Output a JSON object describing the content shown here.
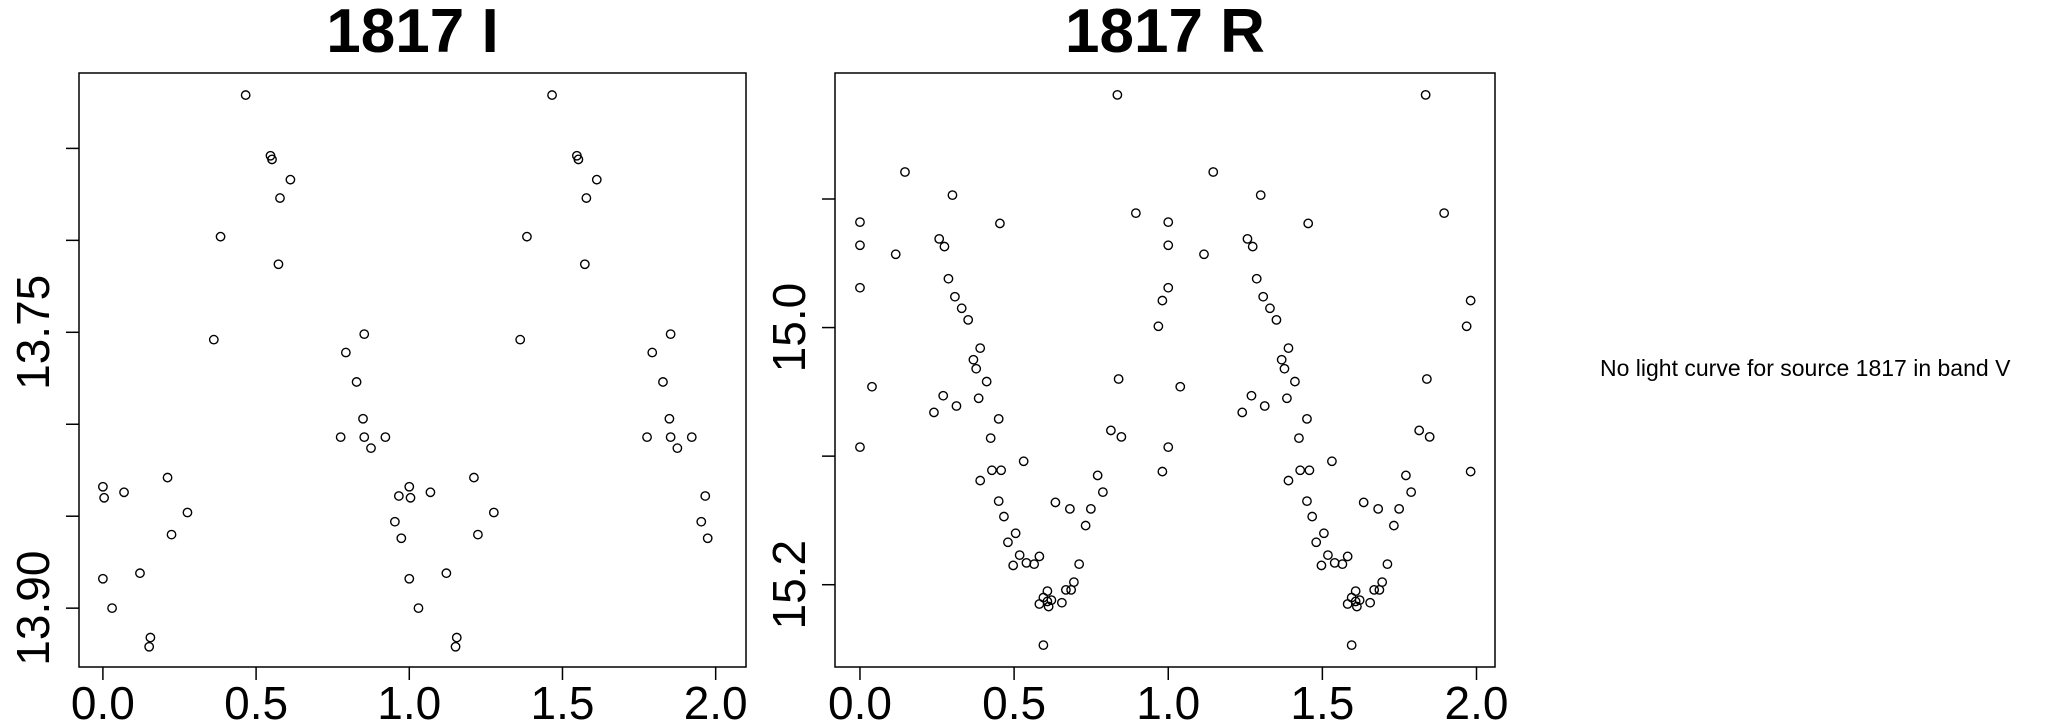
{
  "chart_data": [
    {
      "type": "scatter",
      "title": "1817 I",
      "x": [
        0.0,
        0.004,
        0.0,
        0.03,
        0.069,
        0.121,
        0.155,
        0.151,
        0.211,
        0.224,
        0.276,
        0.362,
        0.384,
        0.466,
        0.547,
        0.552,
        0.578,
        0.612,
        0.573,
        0.776,
        0.793,
        0.828,
        0.849,
        0.853,
        0.853,
        0.875,
        0.922,
        0.953,
        0.966,
        0.974,
        1.0,
        1.004,
        1.0,
        1.03,
        1.069,
        1.121,
        1.155,
        1.151,
        1.211,
        1.224,
        1.276,
        1.362,
        1.384,
        1.466,
        1.547,
        1.552,
        1.578,
        1.612,
        1.573,
        1.776,
        1.793,
        1.828,
        1.849,
        1.853,
        1.853,
        1.875,
        1.922,
        1.953,
        1.966,
        1.974
      ],
      "y": [
        13.834,
        13.84,
        13.884,
        13.9,
        13.837,
        13.881,
        13.916,
        13.921,
        13.829,
        13.86,
        13.848,
        13.754,
        13.698,
        13.621,
        13.654,
        13.656,
        13.677,
        13.667,
        13.713,
        13.807,
        13.761,
        13.777,
        13.797,
        13.807,
        13.751,
        13.813,
        13.807,
        13.853,
        13.839,
        13.862,
        13.834,
        13.84,
        13.884,
        13.9,
        13.837,
        13.881,
        13.916,
        13.921,
        13.829,
        13.86,
        13.848,
        13.754,
        13.698,
        13.621,
        13.654,
        13.656,
        13.677,
        13.667,
        13.713,
        13.807,
        13.761,
        13.777,
        13.797,
        13.807,
        13.751,
        13.813,
        13.807,
        13.853,
        13.839,
        13.862
      ],
      "xlim": [
        -0.078,
        2.099
      ],
      "xticks": [
        {
          "value": 0,
          "label": "0.0"
        },
        {
          "value": 0.5,
          "label": "0.5"
        },
        {
          "value": 1,
          "label": "1.0"
        },
        {
          "value": 1.5,
          "label": "1.5"
        },
        {
          "value": 2,
          "label": "2.0"
        }
      ],
      "ylim": [
        13.932,
        13.609
      ],
      "yticks": [
        13.75,
        {
          "value": 13.9,
          "label": "13.90"
        }
      ],
      "yminorticks": [
        13.65,
        13.7,
        13.8,
        13.85
      ]
    },
    {
      "type": "scatter",
      "title": "1817 R",
      "x": [
        0.0,
        0.0,
        0.0,
        0.0,
        0.039,
        0.116,
        0.146,
        0.24,
        0.257,
        0.27,
        0.274,
        0.287,
        0.3,
        0.308,
        0.313,
        0.33,
        0.351,
        0.368,
        0.377,
        0.385,
        0.39,
        0.39,
        0.411,
        0.424,
        0.428,
        0.45,
        0.454,
        0.45,
        0.458,
        0.467,
        0.48,
        0.497,
        0.505,
        0.518,
        0.531,
        0.54,
        0.565,
        0.582,
        0.582,
        0.595,
        0.608,
        0.608,
        0.612,
        0.621,
        0.634,
        0.655,
        0.668,
        0.681,
        0.685,
        0.694,
        0.711,
        0.732,
        0.749,
        0.771,
        0.788,
        0.814,
        0.839,
        0.848,
        0.835,
        0.895,
        0.968,
        0.981,
        0.981,
        0.595,
        1.0,
        1.0,
        1.0,
        1.0,
        1.039,
        1.116,
        1.146,
        1.24,
        1.257,
        1.27,
        1.274,
        1.287,
        1.3,
        1.308,
        1.313,
        1.33,
        1.351,
        1.368,
        1.377,
        1.385,
        1.39,
        1.39,
        1.411,
        1.424,
        1.428,
        1.45,
        1.454,
        1.45,
        1.458,
        1.467,
        1.48,
        1.497,
        1.505,
        1.518,
        1.531,
        1.54,
        1.565,
        1.582,
        1.582,
        1.595,
        1.608,
        1.608,
        1.612,
        1.621,
        1.634,
        1.655,
        1.668,
        1.681,
        1.685,
        1.694,
        1.711,
        1.732,
        1.749,
        1.771,
        1.788,
        1.814,
        1.839,
        1.848,
        1.835,
        1.895,
        1.968,
        1.981,
        1.981,
        1.595
      ],
      "y": [
        14.918,
        14.936,
        14.969,
        15.093,
        15.046,
        14.943,
        14.879,
        15.066,
        14.931,
        15.053,
        14.937,
        14.962,
        14.897,
        14.976,
        15.061,
        14.985,
        14.994,
        15.025,
        15.032,
        15.055,
        15.016,
        15.119,
        15.042,
        15.086,
        15.111,
        15.071,
        14.919,
        15.135,
        15.111,
        15.147,
        15.167,
        15.185,
        15.16,
        15.177,
        15.104,
        15.183,
        15.184,
        15.178,
        15.215,
        15.21,
        15.213,
        15.205,
        15.217,
        15.212,
        15.136,
        15.214,
        15.204,
        15.141,
        15.204,
        15.198,
        15.184,
        15.154,
        15.141,
        15.115,
        15.128,
        15.08,
        15.04,
        15.085,
        14.819,
        14.911,
        14.999,
        14.979,
        15.112,
        15.247,
        14.918,
        14.936,
        14.969,
        15.093,
        15.046,
        14.943,
        14.879,
        15.066,
        14.931,
        15.053,
        14.937,
        14.962,
        14.897,
        14.976,
        15.061,
        14.985,
        14.994,
        15.025,
        15.032,
        15.055,
        15.016,
        15.119,
        15.042,
        15.086,
        15.111,
        15.071,
        14.919,
        15.135,
        15.111,
        15.147,
        15.167,
        15.185,
        15.16,
        15.177,
        15.104,
        15.183,
        15.184,
        15.178,
        15.215,
        15.21,
        15.213,
        15.205,
        15.217,
        15.212,
        15.136,
        15.214,
        15.204,
        15.141,
        15.204,
        15.198,
        15.184,
        15.154,
        15.141,
        15.115,
        15.128,
        15.08,
        15.04,
        15.085,
        14.819,
        14.911,
        14.999,
        14.979,
        15.112,
        15.247
      ],
      "xlim": [
        -0.081,
        2.06
      ],
      "xticks": [
        {
          "value": 0,
          "label": "0.0"
        },
        {
          "value": 0.5,
          "label": "0.5"
        },
        {
          "value": 1,
          "label": "1.0"
        },
        {
          "value": 1.5,
          "label": "1.5"
        },
        {
          "value": 2,
          "label": "2.0"
        }
      ],
      "ylim": [
        15.264,
        14.802
      ],
      "yticks": [
        {
          "value": 15,
          "label": "15.0"
        },
        15.2
      ],
      "yminorticks": [
        14.9,
        15.1
      ]
    }
  ],
  "message": "No light curve for source 1817 in band V"
}
